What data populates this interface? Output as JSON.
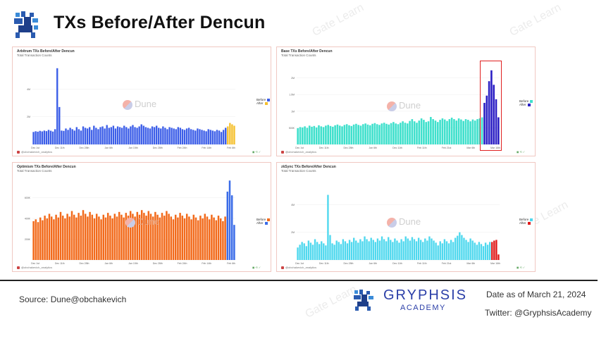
{
  "header": {
    "title": "TXs Before/After Dencun"
  },
  "footer": {
    "source": "Source: Dune@obchakevich",
    "brand_line1": "GRYPHSIS",
    "brand_line2": "ACADEMY",
    "date": "Date as of March 21, 2024",
    "twitter": "Twitter: @GryphsisAcademy"
  },
  "watermark": "Gate Learn",
  "dune_label": "Dune",
  "legend_labels": {
    "before": "Before",
    "after": "After"
  },
  "author": "@obchakevich_analytics",
  "colors": {
    "arbitrum_before": "#3c5ee8",
    "arbitrum_after": "#f5c02e",
    "base_before": "#3fe0cc",
    "base_after": "#2b1fc4",
    "optimism_before": "#f26a1b",
    "optimism_after": "#3a6ce8",
    "zksync_before": "#4fd8ee",
    "zksync_after": "#e01a1a",
    "highlight": "#e02020"
  },
  "chart_data": [
    {
      "type": "bar",
      "title": "Arbitrum TXs Before/After Dencun",
      "subtitle": "Total Transaction Counts",
      "xlabels": [
        "Dec 1st",
        "Dec 11th",
        "Dec 28th",
        "Jan 6th",
        "Jan 15th",
        "Dec 28th",
        "Feb 24th",
        "Feb 14th",
        "Feb 6th"
      ],
      "ylabels": [
        "",
        "2M",
        "4M"
      ],
      "ylim": [
        0,
        6000000
      ],
      "series": [
        {
          "name": "Before",
          "values": [
            900000,
            950000,
            920000,
            980000,
            940000,
            1000000,
            960000,
            1050000,
            990000,
            930000,
            1100000,
            5500000,
            2700000,
            1000000,
            980000,
            1150000,
            1050000,
            1200000,
            1100000,
            1000000,
            1250000,
            1100000,
            1000000,
            1300000,
            1200000,
            1150000,
            1250000,
            1050000,
            1350000,
            1200000,
            1100000,
            1250000,
            1300000,
            1150000,
            1400000,
            1200000,
            1250000,
            1350000,
            1150000,
            1300000,
            1250000,
            1200000,
            1350000,
            1250000,
            1150000,
            1300000,
            1400000,
            1250000,
            1200000,
            1300000,
            1450000,
            1350000,
            1250000,
            1200000,
            1150000,
            1300000,
            1250000,
            1350000,
            1200000,
            1150000,
            1300000,
            1200000,
            1100000,
            1250000,
            1200000,
            1150000,
            1100000,
            1250000,
            1200000,
            1100000,
            1050000,
            1150000,
            1200000,
            1100000,
            1050000,
            1000000,
            1150000,
            1100000,
            1050000,
            1000000,
            950000,
            1100000,
            1050000,
            1000000,
            950000,
            1050000,
            1000000,
            900000,
            1050000,
            1200000
          ]
        },
        {
          "name": "After",
          "values": [
            1300000,
            1550000,
            1450000,
            1350000
          ]
        }
      ]
    },
    {
      "type": "bar",
      "title": "Base TXs Before/After Dencun",
      "subtitle": "Total Transaction Counts",
      "xlabels": [
        "Dec 1st",
        "Dec 11th",
        "Dec 28th",
        "Jan 6th",
        "Dec 11th",
        "Feb 11th",
        "Feb 21st",
        "Mar 6th",
        "Mar 16th"
      ],
      "ylabels": [
        "",
        "500K",
        "1M",
        "1.5M",
        "2M"
      ],
      "ylim": [
        0,
        2300000
      ],
      "series": [
        {
          "name": "Before",
          "values": [
            450000,
            480000,
            470000,
            500000,
            460000,
            520000,
            490000,
            510000,
            470000,
            530000,
            500000,
            480000,
            520000,
            540000,
            510000,
            490000,
            530000,
            550000,
            520000,
            500000,
            540000,
            560000,
            530000,
            510000,
            550000,
            570000,
            540000,
            520000,
            560000,
            580000,
            550000,
            530000,
            570000,
            590000,
            560000,
            540000,
            580000,
            600000,
            570000,
            550000,
            590000,
            620000,
            580000,
            560000,
            600000,
            640000,
            600000,
            580000,
            650000,
            700000,
            640000,
            600000,
            660000,
            720000,
            680000,
            620000,
            640000,
            760000,
            700000,
            660000,
            620000,
            680000,
            720000,
            690000,
            650000,
            700000,
            740000,
            700000,
            660000,
            720000,
            690000,
            650000,
            700000,
            680000,
            640000,
            690000,
            660000,
            700000,
            720000,
            750000
          ]
        },
        {
          "name": "After",
          "values": [
            1150000,
            1350000,
            1750000,
            2050000,
            1650000,
            1250000,
            750000
          ]
        }
      ]
    },
    {
      "type": "bar",
      "title": "Optimism TXs Before/After Dencun",
      "subtitle": "Total Transaction Counts",
      "xlabels": [
        "Dec 1st",
        "Dec 11th",
        "Dec 28th",
        "Jan 6th",
        "Jan 15th",
        "Dec 28th",
        "Feb 24th",
        "Feb 14th",
        "Feb 6th"
      ],
      "ylabels": [
        "",
        "200K",
        "400K",
        "600K"
      ],
      "ylim": [
        0,
        900000
      ],
      "series": [
        {
          "name": "Before",
          "values": [
            420000,
            440000,
            410000,
            460000,
            430000,
            480000,
            450000,
            500000,
            470000,
            440000,
            490000,
            460000,
            520000,
            480000,
            450000,
            500000,
            470000,
            530000,
            490000,
            460000,
            510000,
            480000,
            540000,
            500000,
            470000,
            520000,
            490000,
            450000,
            500000,
            470000,
            440000,
            490000,
            460000,
            510000,
            480000,
            450000,
            500000,
            470000,
            520000,
            490000,
            460000,
            510000,
            480000,
            530000,
            500000,
            470000,
            520000,
            490000,
            540000,
            510000,
            480000,
            530000,
            500000,
            470000,
            520000,
            490000,
            460000,
            510000,
            480000,
            530000,
            500000,
            470000,
            440000,
            490000,
            460000,
            510000,
            480000,
            450000,
            500000,
            470000,
            440000,
            490000,
            460000,
            430000,
            480000,
            450000,
            500000,
            470000,
            440000,
            490000,
            460000,
            430000,
            480000,
            450000,
            420000,
            470000
          ]
        },
        {
          "name": "After",
          "values": [
            740000,
            860000,
            700000,
            380000
          ]
        }
      ]
    },
    {
      "type": "bar",
      "title": "zkSync TXs Before/After Dencun",
      "subtitle": "Total Transaction Counts",
      "xlabels": [
        "Dec 1st",
        "Dec 11th",
        "Dec 28th",
        "Jan 6th",
        "Dec 11th",
        "Feb 11th",
        "Feb 21st",
        "Mar 6th",
        "Mar 16th"
      ],
      "ylabels": [
        "",
        "2M",
        "4M"
      ],
      "ylim": [
        0,
        6000000
      ],
      "series": [
        {
          "name": "Before",
          "values": [
            900000,
            1100000,
            1300000,
            1200000,
            1000000,
            1400000,
            1250000,
            1100000,
            1500000,
            1300000,
            1150000,
            1350000,
            1200000,
            1050000,
            4700000,
            1800000,
            1200000,
            1100000,
            1400000,
            1300000,
            1150000,
            1500000,
            1350000,
            1200000,
            1450000,
            1300000,
            1600000,
            1400000,
            1250000,
            1500000,
            1350000,
            1700000,
            1500000,
            1350000,
            1600000,
            1450000,
            1300000,
            1550000,
            1400000,
            1700000,
            1500000,
            1350000,
            1650000,
            1450000,
            1300000,
            1550000,
            1400000,
            1250000,
            1500000,
            1350000,
            1700000,
            1550000,
            1400000,
            1650000,
            1500000,
            1350000,
            1600000,
            1450000,
            1300000,
            1550000,
            1400000,
            1700000,
            1550000,
            1400000,
            1250000,
            1050000,
            1350000,
            1200000,
            1500000,
            1350000,
            1200000,
            1450000,
            1300000,
            1600000,
            1750000,
            2000000,
            1800000,
            1600000,
            1450000,
            1300000,
            1550000,
            1400000,
            1250000,
            1100000,
            1300000,
            1150000,
            1000000,
            1250000,
            1100000,
            1300000
          ]
        },
        {
          "name": "After",
          "values": [
            1300000,
            1400000,
            1450000,
            400000
          ]
        }
      ]
    }
  ]
}
